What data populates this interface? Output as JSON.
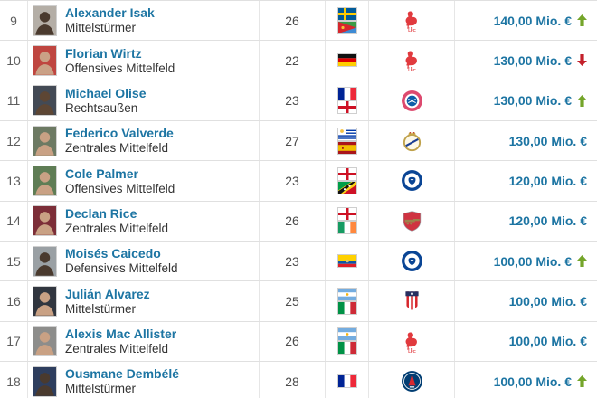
{
  "colors": {
    "link_blue": "#1d75a3",
    "value_blue": "#1d75a3",
    "trend_up_green": "#74a52a",
    "trend_down_red": "#c3202a",
    "row_border": "#e0e0e0"
  },
  "players": [
    {
      "rank": "9",
      "name": "Alexander Isak",
      "position": "Mittelstürmer",
      "age": "26",
      "nationalities": [
        "sweden",
        "eritrea"
      ],
      "club": "liverpool",
      "value": "140,00 Mio. €",
      "trend": "up"
    },
    {
      "rank": "10",
      "name": "Florian Wirtz",
      "position": "Offensives Mittelfeld",
      "age": "22",
      "nationalities": [
        "germany"
      ],
      "club": "liverpool",
      "value": "130,00 Mio. €",
      "trend": "down"
    },
    {
      "rank": "11",
      "name": "Michael Olise",
      "position": "Rechtsaußen",
      "age": "23",
      "nationalities": [
        "france",
        "england"
      ],
      "club": "bayern-munich",
      "value": "130,00 Mio. €",
      "trend": "up"
    },
    {
      "rank": "12",
      "name": "Federico Valverde",
      "position": "Zentrales Mittelfeld",
      "age": "27",
      "nationalities": [
        "uruguay",
        "spain"
      ],
      "club": "real-madrid",
      "value": "130,00 Mio. €",
      "trend": "none"
    },
    {
      "rank": "13",
      "name": "Cole Palmer",
      "position": "Offensives Mittelfeld",
      "age": "23",
      "nationalities": [
        "england",
        "st-kitts-nevis"
      ],
      "club": "chelsea",
      "value": "120,00 Mio. €",
      "trend": "none"
    },
    {
      "rank": "14",
      "name": "Declan Rice",
      "position": "Zentrales Mittelfeld",
      "age": "26",
      "nationalities": [
        "england",
        "ireland"
      ],
      "club": "arsenal",
      "value": "120,00 Mio. €",
      "trend": "none"
    },
    {
      "rank": "15",
      "name": "Moisés Caicedo",
      "position": "Defensives Mittelfeld",
      "age": "23",
      "nationalities": [
        "ecuador"
      ],
      "club": "chelsea",
      "value": "100,00 Mio. €",
      "trend": "up"
    },
    {
      "rank": "16",
      "name": "Julián Alvarez",
      "position": "Mittelstürmer",
      "age": "25",
      "nationalities": [
        "argentina",
        "italy"
      ],
      "club": "atletico-madrid",
      "value": "100,00 Mio. €",
      "trend": "none"
    },
    {
      "rank": "17",
      "name": "Alexis Mac Allister",
      "position": "Zentrales Mittelfeld",
      "age": "26",
      "nationalities": [
        "argentina",
        "italy"
      ],
      "club": "liverpool",
      "value": "100,00 Mio. €",
      "trend": "none"
    },
    {
      "rank": "18",
      "name": "Ousmane Dembélé",
      "position": "Mittelstürmer",
      "age": "28",
      "nationalities": [
        "france"
      ],
      "club": "paris-saint-germain",
      "value": "100,00 Mio. €",
      "trend": "up"
    }
  ]
}
